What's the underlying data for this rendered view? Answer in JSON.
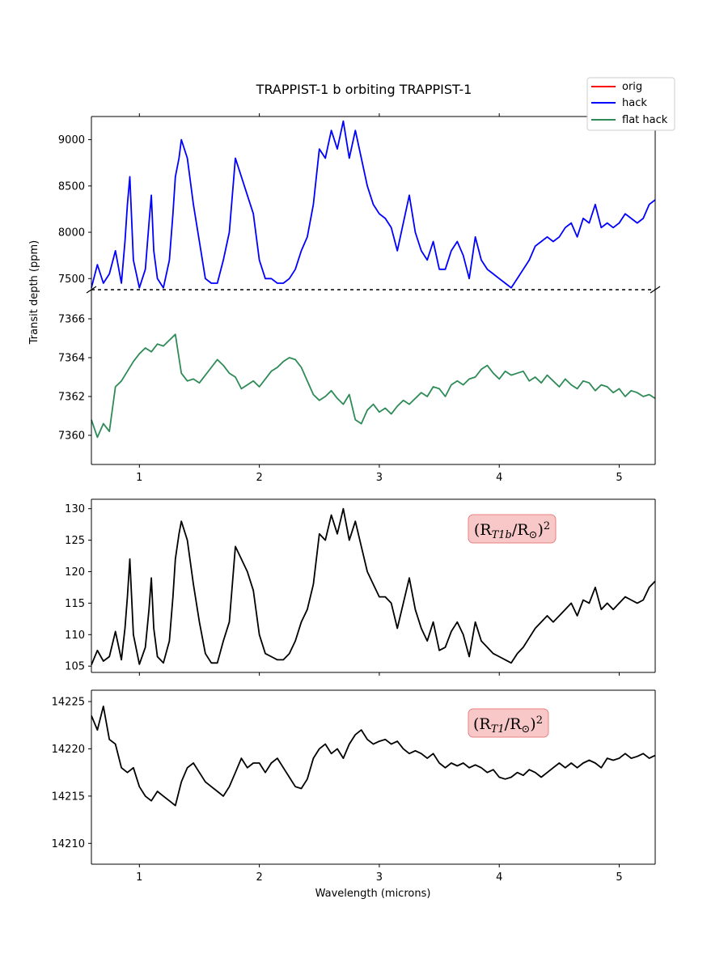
{
  "chart_data": {
    "type": "line",
    "title": "TRAPPIST-1 b orbiting TRAPPIST-1",
    "ylabel": "Transit depth (ppm)",
    "xlabel": "Wavelength (microns)",
    "xlim": [
      0.6,
      5.3
    ],
    "x_ticks": [
      1,
      2,
      3,
      4,
      5
    ],
    "legend": {
      "placement": "top-right",
      "entries": [
        {
          "name": "orig",
          "color": "#ff0000"
        },
        {
          "name": "hack",
          "color": "#0000ff"
        },
        {
          "name": "flat hack",
          "color": "#2e8b57"
        }
      ]
    },
    "panels": [
      {
        "id": "top-hack",
        "ylim": [
          7380,
          9250
        ],
        "y_ticks": [
          7500,
          8000,
          8500,
          9000
        ],
        "baseline": 7380,
        "series": [
          {
            "name": "hack",
            "color": "#0000ff",
            "x": [
              0.6,
              0.65,
              0.7,
              0.75,
              0.8,
              0.85,
              0.88,
              0.9,
              0.92,
              0.95,
              1.0,
              1.05,
              1.08,
              1.1,
              1.12,
              1.15,
              1.2,
              1.25,
              1.28,
              1.3,
              1.33,
              1.35,
              1.4,
              1.45,
              1.5,
              1.55,
              1.6,
              1.65,
              1.7,
              1.75,
              1.8,
              1.85,
              1.9,
              1.95,
              2.0,
              2.05,
              2.1,
              2.15,
              2.2,
              2.25,
              2.3,
              2.35,
              2.4,
              2.45,
              2.5,
              2.55,
              2.6,
              2.65,
              2.7,
              2.75,
              2.8,
              2.85,
              2.9,
              2.95,
              3.0,
              3.05,
              3.1,
              3.15,
              3.2,
              3.25,
              3.3,
              3.35,
              3.4,
              3.45,
              3.5,
              3.55,
              3.6,
              3.65,
              3.7,
              3.75,
              3.8,
              3.85,
              3.9,
              3.95,
              4.0,
              4.05,
              4.1,
              4.15,
              4.2,
              4.25,
              4.3,
              4.35,
              4.4,
              4.45,
              4.5,
              4.55,
              4.6,
              4.65,
              4.7,
              4.75,
              4.8,
              4.85,
              4.9,
              4.95,
              5.0,
              5.05,
              5.1,
              5.15,
              5.2,
              5.25,
              5.3
            ],
            "y": [
              7400,
              7650,
              7450,
              7550,
              7800,
              7450,
              7900,
              8300,
              8600,
              7700,
              7400,
              7600,
              8100,
              8400,
              7800,
              7500,
              7400,
              7700,
              8200,
              8600,
              8800,
              9000,
              8800,
              8300,
              7900,
              7500,
              7450,
              7450,
              7700,
              8000,
              8800,
              8600,
              8400,
              8200,
              7700,
              7500,
              7500,
              7450,
              7450,
              7500,
              7600,
              7800,
              7950,
              8300,
              8900,
              8800,
              9100,
              8900,
              9200,
              8800,
              9100,
              8800,
              8500,
              8300,
              8200,
              8150,
              8050,
              7800,
              8100,
              8400,
              8000,
              7800,
              7700,
              7900,
              7600,
              7600,
              7800,
              7900,
              7750,
              7500,
              7950,
              7700,
              7600,
              7550,
              7500,
              7450,
              7400,
              7500,
              7600,
              7700,
              7850,
              7900,
              7950,
              7900,
              7950,
              8050,
              8100,
              7950,
              8150,
              8100,
              8300,
              8050,
              8100,
              8050,
              8100,
              8200,
              8150,
              8100,
              8150,
              8300,
              8350
            ]
          }
        ]
      },
      {
        "id": "top-flat",
        "ylim": [
          7358.5,
          7367.5
        ],
        "y_ticks": [
          7360,
          7362,
          7364,
          7366
        ],
        "series": [
          {
            "name": "flat hack",
            "color": "#2e8b57",
            "x": [
              0.6,
              0.65,
              0.7,
              0.75,
              0.8,
              0.85,
              0.9,
              0.95,
              1.0,
              1.05,
              1.1,
              1.15,
              1.2,
              1.25,
              1.3,
              1.35,
              1.4,
              1.45,
              1.5,
              1.55,
              1.6,
              1.65,
              1.7,
              1.75,
              1.8,
              1.85,
              1.9,
              1.95,
              2.0,
              2.05,
              2.1,
              2.15,
              2.2,
              2.25,
              2.3,
              2.35,
              2.4,
              2.45,
              2.5,
              2.55,
              2.6,
              2.65,
              2.7,
              2.75,
              2.8,
              2.85,
              2.9,
              2.95,
              3.0,
              3.05,
              3.1,
              3.15,
              3.2,
              3.25,
              3.3,
              3.35,
              3.4,
              3.45,
              3.5,
              3.55,
              3.6,
              3.65,
              3.7,
              3.75,
              3.8,
              3.85,
              3.9,
              3.95,
              4.0,
              4.05,
              4.1,
              4.15,
              4.2,
              4.25,
              4.3,
              4.35,
              4.4,
              4.45,
              4.5,
              4.55,
              4.6,
              4.65,
              4.7,
              4.75,
              4.8,
              4.85,
              4.9,
              4.95,
              5.0,
              5.05,
              5.1,
              5.15,
              5.2,
              5.25,
              5.3
            ],
            "y": [
              7360.8,
              7359.9,
              7360.6,
              7360.2,
              7362.5,
              7362.8,
              7363.3,
              7363.8,
              7364.2,
              7364.5,
              7364.3,
              7364.7,
              7364.6,
              7364.9,
              7365.2,
              7363.2,
              7362.8,
              7362.9,
              7362.7,
              7363.1,
              7363.5,
              7363.9,
              7363.6,
              7363.2,
              7363.0,
              7362.4,
              7362.6,
              7362.8,
              7362.5,
              7362.9,
              7363.3,
              7363.5,
              7363.8,
              7364.0,
              7363.9,
              7363.5,
              7362.8,
              7362.1,
              7361.8,
              7362.0,
              7362.3,
              7361.9,
              7361.6,
              7362.1,
              7360.8,
              7360.6,
              7361.3,
              7361.6,
              7361.2,
              7361.4,
              7361.1,
              7361.5,
              7361.8,
              7361.6,
              7361.9,
              7362.2,
              7362.0,
              7362.5,
              7362.4,
              7362.0,
              7362.6,
              7362.8,
              7362.6,
              7362.9,
              7363.0,
              7363.4,
              7363.6,
              7363.2,
              7362.9,
              7363.3,
              7363.1,
              7363.2,
              7363.3,
              7362.8,
              7363.0,
              7362.7,
              7363.1,
              7362.8,
              7362.5,
              7362.9,
              7362.6,
              7362.4,
              7362.8,
              7362.7,
              7362.3,
              7362.6,
              7362.5,
              7362.2,
              7362.4,
              7362.0,
              7362.3,
              7362.2,
              7362.0,
              7362.1,
              7361.9
            ]
          }
        ]
      },
      {
        "id": "planet-radius",
        "annotation": "(R_T1b/R_⊙)^2",
        "ylim": [
          104,
          131.5
        ],
        "y_ticks": [
          105,
          110,
          115,
          120,
          125,
          130
        ],
        "series": [
          {
            "name": "",
            "color": "#000000",
            "x": [
              0.6,
              0.65,
              0.7,
              0.75,
              0.8,
              0.85,
              0.88,
              0.9,
              0.92,
              0.95,
              1.0,
              1.05,
              1.08,
              1.1,
              1.12,
              1.15,
              1.2,
              1.25,
              1.28,
              1.3,
              1.33,
              1.35,
              1.4,
              1.45,
              1.5,
              1.55,
              1.6,
              1.65,
              1.7,
              1.75,
              1.8,
              1.85,
              1.9,
              1.95,
              2.0,
              2.05,
              2.1,
              2.15,
              2.2,
              2.25,
              2.3,
              2.35,
              2.4,
              2.45,
              2.5,
              2.55,
              2.6,
              2.65,
              2.7,
              2.75,
              2.8,
              2.85,
              2.9,
              2.95,
              3.0,
              3.05,
              3.1,
              3.15,
              3.2,
              3.25,
              3.3,
              3.35,
              3.4,
              3.45,
              3.5,
              3.55,
              3.6,
              3.65,
              3.7,
              3.75,
              3.8,
              3.85,
              3.9,
              3.95,
              4.0,
              4.05,
              4.1,
              4.15,
              4.2,
              4.25,
              4.3,
              4.35,
              4.4,
              4.45,
              4.5,
              4.55,
              4.6,
              4.65,
              4.7,
              4.75,
              4.8,
              4.85,
              4.9,
              4.95,
              5.0,
              5.05,
              5.1,
              5.15,
              5.2,
              5.25,
              5.3
            ],
            "y": [
              105.2,
              107.5,
              105.8,
              106.5,
              110.5,
              106.0,
              111.0,
              116.0,
              122.0,
              110.0,
              105.3,
              108.0,
              114.0,
              119.0,
              111.0,
              106.5,
              105.5,
              109.0,
              116.0,
              122.0,
              126.0,
              128.0,
              125.0,
              118.0,
              112.0,
              107.0,
              105.5,
              105.5,
              109.0,
              112.0,
              124.0,
              122.0,
              120.0,
              117.0,
              110.0,
              107.0,
              106.5,
              106.0,
              106.0,
              107.0,
              109.0,
              112.0,
              114.0,
              118.0,
              126.0,
              125.0,
              129.0,
              126.0,
              130.0,
              125.0,
              128.0,
              124.0,
              120.0,
              118.0,
              116.0,
              116.0,
              115.0,
              111.0,
              115.0,
              119.0,
              114.0,
              111.0,
              109.0,
              112.0,
              107.5,
              108.0,
              110.5,
              112.0,
              110.0,
              106.5,
              112.0,
              109.0,
              108.0,
              107.0,
              106.5,
              106.0,
              105.5,
              107.0,
              108.0,
              109.5,
              111.0,
              112.0,
              113.0,
              112.0,
              113.0,
              114.0,
              115.0,
              113.0,
              115.5,
              115.0,
              117.5,
              114.0,
              115.0,
              114.0,
              115.0,
              116.0,
              115.5,
              115.0,
              115.5,
              117.5,
              118.5
            ]
          }
        ]
      },
      {
        "id": "star-radius",
        "annotation": "(R_T1/R_⊙)^2",
        "ylim": [
          14207.8,
          14226.2
        ],
        "y_ticks": [
          14210,
          14215,
          14220,
          14225
        ],
        "series": [
          {
            "name": "",
            "color": "#000000",
            "x": [
              0.6,
              0.65,
              0.7,
              0.75,
              0.8,
              0.85,
              0.9,
              0.95,
              1.0,
              1.05,
              1.1,
              1.15,
              1.2,
              1.25,
              1.3,
              1.35,
              1.4,
              1.45,
              1.5,
              1.55,
              1.6,
              1.65,
              1.7,
              1.75,
              1.8,
              1.85,
              1.9,
              1.95,
              2.0,
              2.05,
              2.1,
              2.15,
              2.2,
              2.25,
              2.3,
              2.35,
              2.4,
              2.45,
              2.5,
              2.55,
              2.6,
              2.65,
              2.7,
              2.75,
              2.8,
              2.85,
              2.9,
              2.95,
              3.0,
              3.05,
              3.1,
              3.15,
              3.2,
              3.25,
              3.3,
              3.35,
              3.4,
              3.45,
              3.5,
              3.55,
              3.6,
              3.65,
              3.7,
              3.75,
              3.8,
              3.85,
              3.9,
              3.95,
              4.0,
              4.05,
              4.1,
              4.15,
              4.2,
              4.25,
              4.3,
              4.35,
              4.4,
              4.45,
              4.5,
              4.55,
              4.6,
              4.65,
              4.7,
              4.75,
              4.8,
              4.85,
              4.9,
              4.95,
              5.0,
              5.05,
              5.1,
              5.15,
              5.2,
              5.25,
              5.3
            ],
            "y": [
              14223.5,
              14222.0,
              14224.5,
              14221.0,
              14220.5,
              14218.0,
              14217.5,
              14218.0,
              14216.0,
              14215.0,
              14214.5,
              14215.5,
              14215.0,
              14214.5,
              14214.0,
              14216.5,
              14218.0,
              14218.5,
              14217.5,
              14216.5,
              14216.0,
              14215.5,
              14215.0,
              14216.0,
              14217.5,
              14219.0,
              14218.0,
              14218.5,
              14218.5,
              14217.5,
              14218.5,
              14219.0,
              14218.0,
              14217.0,
              14216.0,
              14215.8,
              14216.8,
              14219.0,
              14220.0,
              14220.5,
              14219.5,
              14220.0,
              14219.0,
              14220.5,
              14221.5,
              14222.0,
              14221.0,
              14220.5,
              14220.8,
              14221.0,
              14220.5,
              14220.8,
              14220.0,
              14219.5,
              14219.8,
              14219.5,
              14219.0,
              14219.5,
              14218.5,
              14218.0,
              14218.5,
              14218.2,
              14218.5,
              14218.0,
              14218.3,
              14218.0,
              14217.5,
              14217.8,
              14217.0,
              14216.8,
              14217.0,
              14217.5,
              14217.2,
              14217.8,
              14217.5,
              14217.0,
              14217.5,
              14218.0,
              14218.5,
              14218.0,
              14218.5,
              14218.0,
              14218.5,
              14218.8,
              14218.5,
              14218.0,
              14219.0,
              14218.8,
              14219.0,
              14219.5,
              14219.0,
              14219.2,
              14219.5,
              14219.0,
              14219.3
            ]
          }
        ]
      }
    ]
  }
}
